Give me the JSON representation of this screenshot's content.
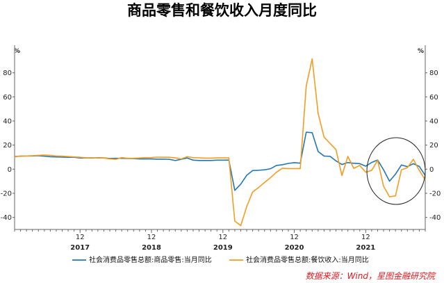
{
  "chart_data": {
    "type": "line",
    "title": "商品零售和餐饮收入月度同比",
    "unit_left": "%",
    "unit_right": "%",
    "ylim": [
      -50,
      100
    ],
    "yticks": [
      -40,
      -20,
      0,
      20,
      40,
      60,
      80
    ],
    "x_tick_labels": [
      "12",
      "12",
      "12",
      "12",
      "12"
    ],
    "year_labels": [
      "2017",
      "2018",
      "2019",
      "2020",
      "2021"
    ],
    "grid": false,
    "legend_position": "bottom",
    "source": "数据来源：Wind，星图金融研究院",
    "colors": {
      "retail": "#1f77b4",
      "catering": "#f39c1f",
      "circle": "#222222",
      "source": "#e0181f"
    },
    "series": [
      {
        "name": "社会消费品零售总额:商品零售:当月同比",
        "values": [
          10.5,
          10.8,
          11,
          11,
          11.2,
          10.8,
          10.3,
          10.2,
          10,
          9.9,
          9.9,
          9.3,
          9.4,
          9.3,
          9.5,
          9.4,
          8.9,
          9,
          9,
          8.9,
          8.8,
          8.5,
          8.5,
          8.5,
          8.3,
          8.3,
          8.2,
          7.2,
          8.2,
          9.3,
          7.5,
          7.2,
          7.2,
          7.2,
          7.5,
          7.5,
          7.6,
          -17.6,
          -12.4,
          -5.1,
          -1.1,
          -0.9,
          -0.5,
          0.4,
          3.1,
          3.7,
          4.8,
          5.4,
          5.0,
          30.7,
          30.3,
          14.7,
          10.9,
          10.7,
          6.9,
          3.9,
          5.5,
          4.9,
          4.6,
          2.5,
          5.6,
          7.6,
          -0.5,
          -10,
          -4.1,
          3.5,
          2.1,
          4.6,
          2.3,
          -5.2
        ]
      },
      {
        "name": "社会消费品零售总额:餐饮收入:当月同比",
        "values": [
          10.2,
          11,
          11,
          11.2,
          11.5,
          11.8,
          11.5,
          11,
          10.8,
          10.5,
          10.2,
          9.9,
          9.5,
          9.5,
          9.2,
          9.3,
          8.5,
          8.2,
          9.6,
          9,
          9,
          9.3,
          9.6,
          9.7,
          10,
          9.9,
          9.9,
          9.4,
          8.5,
          10.4,
          9.5,
          9.5,
          9.2,
          9.2,
          9.4,
          9.4,
          9.4,
          -43.1,
          -46.8,
          -31.1,
          -18.9,
          -15.2,
          -11.0,
          -7,
          -2.5,
          0.8,
          0.5,
          0.5,
          0.5,
          68.9,
          91.6,
          46.4,
          26.6,
          21.4,
          16.3,
          -5.3,
          10.6,
          0.7,
          3.1,
          -2.5,
          -1.0,
          7.3,
          -14.1,
          -22.9,
          -22.1,
          -0.5,
          1.3,
          8.2,
          -1.1,
          -8.7
        ]
      }
    ]
  }
}
